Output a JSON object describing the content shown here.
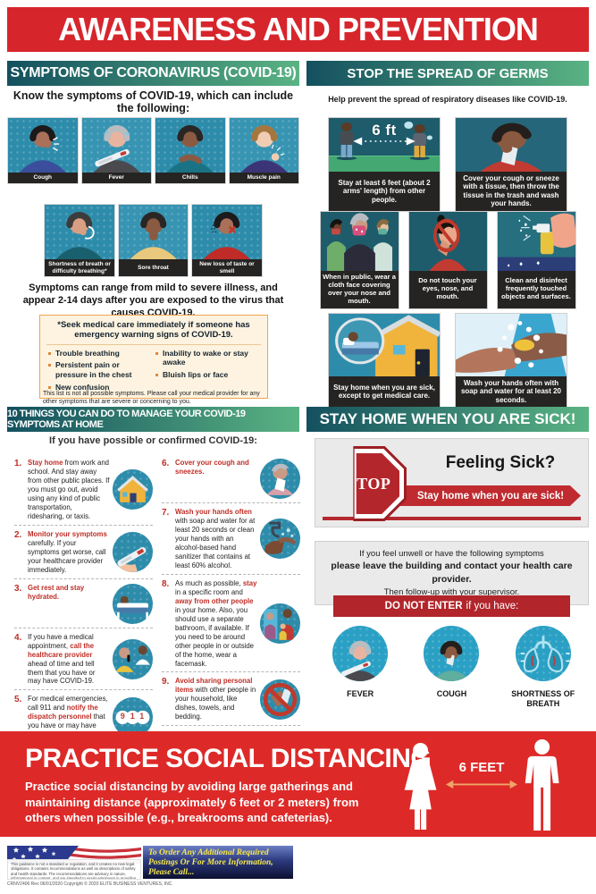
{
  "header": {
    "title": "AWARENESS AND PREVENTION"
  },
  "colors": {
    "red": "#d7252c",
    "accent_red": "#bf2e27",
    "band_dark": "#14505f",
    "band_green": "#5ab383",
    "tile_teal": "#2e8cab",
    "caption_dark": "#262422",
    "warn_bg": "#fdf3e0",
    "warn_border": "#efa54e"
  },
  "symptoms": {
    "band": "SYMPTOMS OF CORONAVIRUS (COVID-19)",
    "intro": "Know the symptoms of COVID-19, which can include the following:",
    "row1": [
      {
        "label": "Cough",
        "icon": "person-coughing"
      },
      {
        "label": "Fever",
        "icon": "person-fever-thermometer"
      },
      {
        "label": "Chills",
        "icon": "person-chills"
      },
      {
        "label": "Muscle pain",
        "icon": "person-muscle-pain"
      }
    ],
    "row2": [
      {
        "label": "Shortness of breath or difficulty breathing*",
        "icon": "person-shortness-breath"
      },
      {
        "label": "Sore throat",
        "icon": "person-sore-throat"
      },
      {
        "label": "New loss of taste or smell",
        "icon": "person-loss-taste-smell"
      }
    ],
    "range_note": "Symptoms can range from mild to severe illness, and appear 2-14 days after you are exposed to the virus that causes COVID-19.",
    "warning_box": {
      "title": "*Seek medical care immediately if someone has emergency warning signs of COVID-19.",
      "left_bullets": [
        "Trouble breathing",
        "Persistent pain or pressure in the chest",
        "New confusion"
      ],
      "right_bullets": [
        "Inability to wake or stay awake",
        "Bluish lips or face"
      ]
    },
    "footnote": "This list is not all possible symptoms. Please call your medical provider for any other symptoms that are severe or concerning to you."
  },
  "germs": {
    "band": "STOP THE SPREAD OF GERMS",
    "intro": "Help prevent the spread of respiratory diseases like COVID-19.",
    "rows": [
      [
        {
          "caption": "Stay at least 6 feet (about 2 arms' length) from other people.",
          "icon": "six-feet-distance",
          "overlay": "6 ft"
        },
        {
          "caption": "Cover your cough or sneeze with a tissue, then throw the tissue in the trash and wash your hands.",
          "icon": "cover-cough-tissue"
        }
      ],
      [
        {
          "caption": "When in public, wear a cloth face covering over your nose and mouth.",
          "icon": "wear-face-covering"
        },
        {
          "caption": "Do not touch your eyes, nose, and mouth.",
          "icon": "no-touch-face"
        },
        {
          "caption": "Clean and disinfect frequently touched objects and surfaces.",
          "icon": "disinfect-surfaces"
        }
      ],
      [
        {
          "caption": "Stay home when you are sick, except to get medical care.",
          "icon": "stay-home-sick"
        },
        {
          "caption": "Wash your hands often with soap and water for at least 20 seconds.",
          "icon": "wash-hands"
        }
      ]
    ]
  },
  "ten_things": {
    "band": "10 THINGS YOU CAN DO TO MANAGE YOUR COVID-19 SYMPTOMS AT HOME",
    "subheader": "If you have possible or confirmed COVID-19:",
    "items": [
      {
        "num": "1.",
        "icon": "house",
        "segments": [
          [
            "Stay home",
            1
          ],
          [
            " from work and school. And stay away from other public places. If you must go out, avoid using any kind of public transportation, ridesharing, or taxis.",
            0
          ]
        ]
      },
      {
        "num": "2.",
        "icon": "hand-thermometer",
        "segments": [
          [
            "Monitor your symptoms",
            1
          ],
          [
            " carefully. If your symptoms get worse, call your healthcare provider immediately.",
            0
          ]
        ]
      },
      {
        "num": "3.",
        "icon": "person-resting-bed",
        "segments": [
          [
            "Get rest and stay hydrated.",
            1
          ]
        ]
      },
      {
        "num": "4.",
        "icon": "phone-call-provider",
        "segments": [
          [
            "If you have a medical appointment, ",
            0
          ],
          [
            "call the healthcare provider",
            1
          ],
          [
            " ahead of time and tell them that you have or may have COVID-19.",
            0
          ]
        ]
      },
      {
        "num": "5.",
        "icon": "nine-one-one",
        "icon_text": "911",
        "segments": [
          [
            "For medical emergencies, call 911 and ",
            0
          ],
          [
            "notify the dispatch personnel",
            1
          ],
          [
            " that you have or may have COVID-19.",
            0
          ]
        ]
      },
      {
        "num": "6.",
        "icon": "cover-cough-sneeze",
        "segments": [
          [
            "Cover your cough and sneezes.",
            1
          ]
        ]
      },
      {
        "num": "7.",
        "icon": "wash-hands-soap",
        "segments": [
          [
            "Wash your hands often",
            1
          ],
          [
            " with soap and water for at least 20 seconds or clean your hands with an alcohol-based hand sanitizer that contains at least 60% alcohol.",
            0
          ]
        ]
      },
      {
        "num": "8.",
        "icon": "stay-separate-room",
        "segments": [
          [
            "As much as possible, ",
            0
          ],
          [
            "stay",
            1
          ],
          [
            " in a specific room and ",
            0
          ],
          [
            "away from other people",
            1
          ],
          [
            " in your home. Also, you should use a separate bathroom, if available. If you need to be around other people in or outside of the home, wear a facemask.",
            0
          ]
        ]
      },
      {
        "num": "9.",
        "icon": "no-sharing-items",
        "segments": [
          [
            "Avoid sharing personal items",
            1
          ],
          [
            " with other people in your household, like dishes, towels, and bedding.",
            0
          ]
        ]
      },
      {
        "num": "10.",
        "icon": "clean-surfaces-spray",
        "segments": [
          [
            "Clean all surfaces",
            1
          ],
          [
            " that are touched often, like counters, tabletops, and doorknobs. Use household cleaning sprays or wipes according to the label instructions.",
            0
          ]
        ]
      }
    ]
  },
  "stay_home": {
    "band": "STAY HOME WHEN YOU ARE SICK!",
    "stop_sign": "STOP",
    "feeling_sick": "Feeling Sick?",
    "banner": "Stay home when you are sick!",
    "notice_line1": "If you feel unwell or have the following symptoms",
    "notice_line2": "please leave the building and contact your health care provider.",
    "notice_line3": "Then follow-up with your supervisor.",
    "do_not_enter_lead": "DO NOT ENTER",
    "do_not_enter_rest": "if you have:",
    "symptoms": [
      {
        "label": "FEVER",
        "icon": "fever-thermometer"
      },
      {
        "label": "COUGH",
        "icon": "cough-tissue"
      },
      {
        "label": "SHORTNESS OF BREATH",
        "icon": "lungs"
      }
    ]
  },
  "distancing": {
    "title": "PRACTICE SOCIAL DISTANCING",
    "body": "Practice social distancing by avoiding large gatherings and maintaining distance (approximately 6 feet or 2 meters) from others when possible (e.g., breakrooms and cafeterias).",
    "distance_label": "6 FEET"
  },
  "footer": {
    "order_text": "To Order Any Additional Required Postings Or For More Information, Please Call...",
    "disclaimer": "This guidance is not a standard or regulation, and it creates no new legal obligations. It contains recommendations as well as descriptions of safety and health standards. The recommendations are advisory in nature, informational in content, and are intended to assist employers in providing a safe and healthful workplace. We recommend to always check the CDC Website for updated information on what is a rapidly evolving situation. This poster is for informational purposes only and is not to be considered as medical advice.",
    "meta": "CRNV2406    Rev 06/01/2020    Copyright © 2020 ELITE BUSINESS VENTURES, INC."
  }
}
